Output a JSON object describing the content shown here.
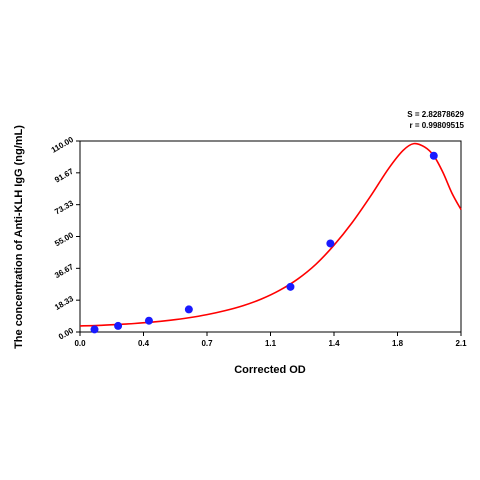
{
  "chart_data": {
    "type": "scatter",
    "xlabel": "Corrected OD",
    "ylabel": "The concentration of Anti-KLH IgG (ng/mL)",
    "xlim": [
      0,
      2.1
    ],
    "ylim": [
      0,
      110
    ],
    "x_ticks": [
      "0.0",
      "0.4",
      "0.7",
      "1.1",
      "1.4",
      "1.8",
      "2.1"
    ],
    "x_tick_values": [
      0,
      0.35,
      0.7,
      1.05,
      1.4,
      1.75,
      2.1
    ],
    "y_ticks": [
      "0.00",
      "18.33",
      "36.67",
      "55.00",
      "73.33",
      "91.67",
      "110.00"
    ],
    "y_tick_values": [
      0,
      18.33,
      36.67,
      55,
      73.33,
      91.67,
      110
    ],
    "stats": {
      "s": "S = 2.82878629",
      "r": "r = 0.99809515"
    },
    "points": [
      {
        "x": 0.08,
        "y": 1.5
      },
      {
        "x": 0.21,
        "y": 3.5
      },
      {
        "x": 0.38,
        "y": 6.5
      },
      {
        "x": 0.6,
        "y": 13.0
      },
      {
        "x": 1.16,
        "y": 26.0
      },
      {
        "x": 1.38,
        "y": 51.0
      },
      {
        "x": 1.95,
        "y": 101.5
      }
    ],
    "fit_curve": [
      [
        0.0,
        3.5
      ],
      [
        0.1,
        3.8
      ],
      [
        0.2,
        4.3
      ],
      [
        0.3,
        4.9
      ],
      [
        0.4,
        5.7
      ],
      [
        0.5,
        6.8
      ],
      [
        0.6,
        8.2
      ],
      [
        0.7,
        10.0
      ],
      [
        0.8,
        12.3
      ],
      [
        0.9,
        15.2
      ],
      [
        1.0,
        19.0
      ],
      [
        1.1,
        24.0
      ],
      [
        1.2,
        30.5
      ],
      [
        1.3,
        39.0
      ],
      [
        1.4,
        50.0
      ],
      [
        1.5,
        63.0
      ],
      [
        1.6,
        78.0
      ],
      [
        1.7,
        94.0
      ],
      [
        1.78,
        104.5
      ],
      [
        1.84,
        108.5
      ],
      [
        1.9,
        106.5
      ],
      [
        1.95,
        101.5
      ],
      [
        2.0,
        92.0
      ],
      [
        2.05,
        80.0
      ],
      [
        2.1,
        70.5
      ]
    ],
    "marker_color": "#1a1aff",
    "curve_color": "#ff0000",
    "grid": false
  }
}
